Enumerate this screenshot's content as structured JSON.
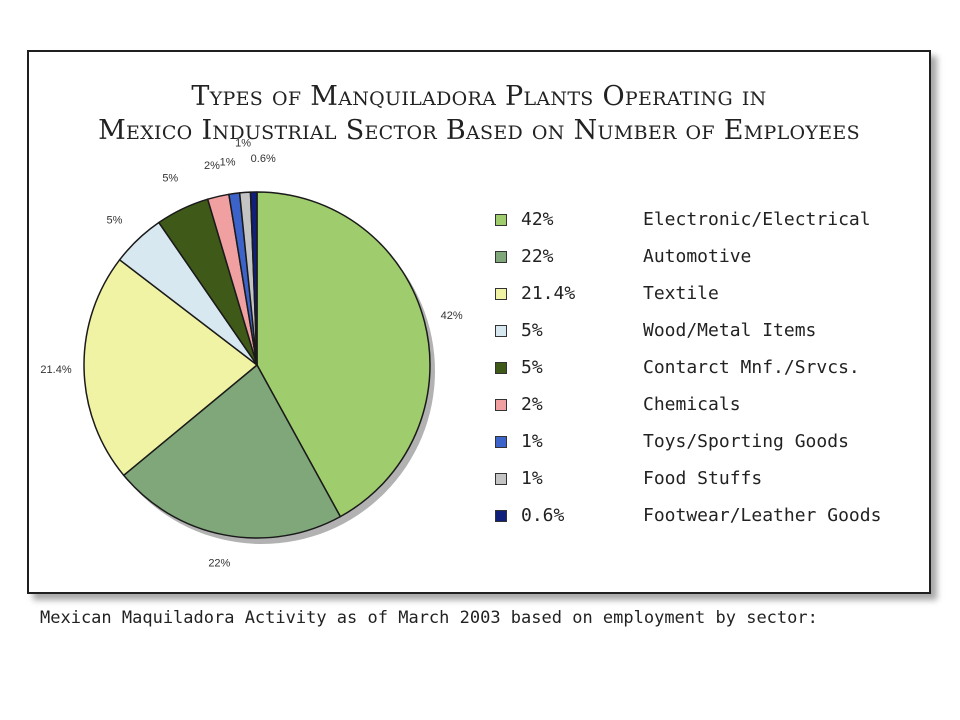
{
  "chart_data": {
    "type": "pie",
    "title": [
      "Types of Manquiladora Plants Operating in",
      "Mexico Industrial Sector Based on Number of Employees"
    ],
    "slices": [
      {
        "label": "Electronic/Electrical",
        "value": 42,
        "legend_pct": "42%",
        "data_label": "42%",
        "color": "#9fcc6c"
      },
      {
        "label": "Automotive",
        "value": 22,
        "legend_pct": "22%",
        "data_label": "22%",
        "color": "#7fa77a"
      },
      {
        "label": "Textile",
        "value": 21.4,
        "legend_pct": "21.4%",
        "data_label": "21.4%",
        "color": "#f1f3a4"
      },
      {
        "label": "Wood/Metal Items",
        "value": 5,
        "legend_pct": "5%",
        "data_label": "5%",
        "color": "#d8e8f0"
      },
      {
        "label": "Contarct Mnf./Srvcs.",
        "value": 5,
        "legend_pct": "5%",
        "data_label": "5%",
        "color": "#3f5a18"
      },
      {
        "label": "Chemicals",
        "value": 2,
        "legend_pct": "2%",
        "data_label": "2%",
        "color": "#f0a0a0"
      },
      {
        "label": "Toys/Sporting Goods",
        "value": 1,
        "legend_pct": "1%",
        "data_label": "1%",
        "color": "#3b63c9"
      },
      {
        "label": "Food Stuffs",
        "value": 1,
        "legend_pct": "1%",
        "data_label": "1%",
        "color": "#c4c4c4"
      },
      {
        "label": "Footwear/Leather Goods",
        "value": 0.6,
        "legend_pct": "0.6%",
        "data_label": "0.6%",
        "color": "#0f1f7a"
      }
    ],
    "legend_position": "right"
  },
  "caption": "Mexican Maquiladora Activity as of March 2003 based on employment by sector:"
}
